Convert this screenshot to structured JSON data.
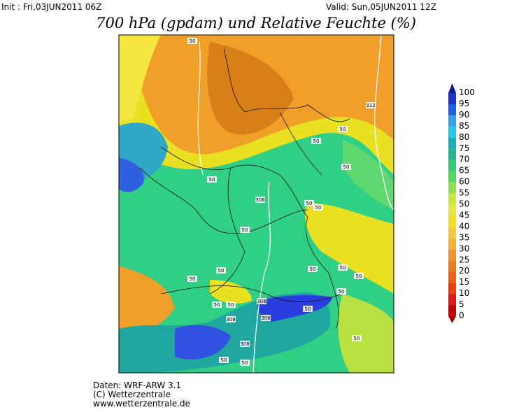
{
  "header": {
    "init": "Init : Fri,03JUN2011 06Z",
    "valid": "Valid: Sun,05JUN2011 12Z",
    "title": "700 hPa (gpdam) und Relative Feuchte (%)"
  },
  "colorbar": {
    "labels": [
      "0",
      "5",
      "10",
      "15",
      "20",
      "25",
      "30",
      "35",
      "40",
      "45",
      "50",
      "55",
      "60",
      "65",
      "70",
      "75",
      "80",
      "85",
      "90",
      "95",
      "100"
    ]
  },
  "contour_labels": [
    "50",
    "312",
    "50",
    "50",
    "50",
    "50",
    "308",
    "50",
    "50",
    "50",
    "50",
    "50",
    "50",
    "50",
    "50",
    "50",
    "50",
    "50",
    "50",
    "308",
    "308",
    "308",
    "308",
    "50",
    "50",
    "50"
  ],
  "footer": [
    "Daten: WRF-ARW 3.1",
    "(C) Wetterzentrale",
    "www.wetterzentrale.de"
  ]
}
